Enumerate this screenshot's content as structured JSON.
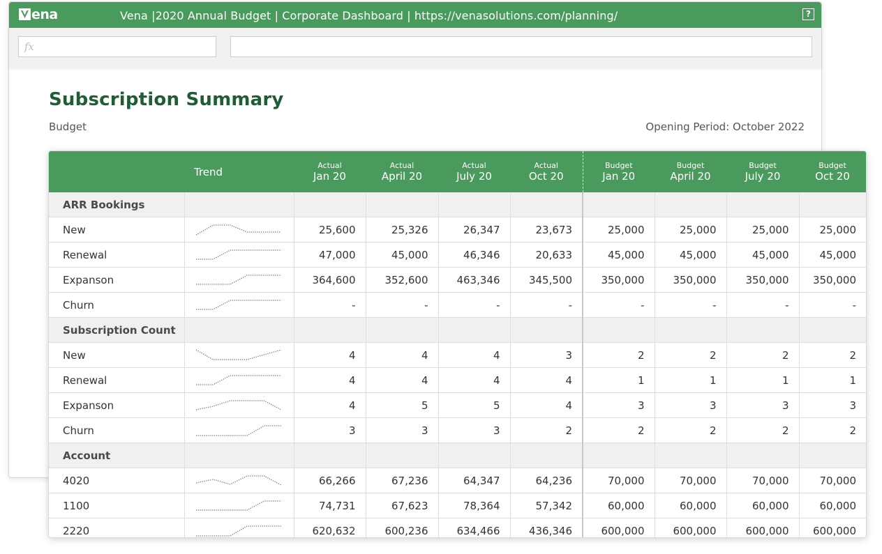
{
  "window": {
    "brand": "ena",
    "title": "Vena |2020 Annual Budget | Corporate Dashboard | https://venasolutions.com/planning/",
    "help_label": "?",
    "brand_color": "#4a9a5e"
  },
  "formula_bar": {
    "fx_placeholder": "fx",
    "formula_value": ""
  },
  "page": {
    "title": "Subscription Summary",
    "subtitle": "Budget",
    "opening_period": "Opening Period: October 2022"
  },
  "table": {
    "trend_header": "Trend",
    "columns": [
      {
        "group": "Actual",
        "period": "Jan 20"
      },
      {
        "group": "Actual",
        "period": "April 20"
      },
      {
        "group": "Actual",
        "period": "July 20"
      },
      {
        "group": "Actual",
        "period": "Oct 20"
      },
      {
        "group": "Budget",
        "period": "Jan 20"
      },
      {
        "group": "Budget",
        "period": "April 20"
      },
      {
        "group": "Budget",
        "period": "July 20"
      },
      {
        "group": "Budget",
        "period": "Oct 20"
      }
    ],
    "rows": [
      {
        "type": "section",
        "label": "ARR Bookings"
      },
      {
        "type": "data",
        "label": "New",
        "trend": [
          0.15,
          0.85,
          0.85,
          0.35,
          0.35,
          0.35
        ],
        "values": [
          "25,600",
          "25,326",
          "26,347",
          "23,673",
          "25,000",
          "25,000",
          "25,000",
          "25,000"
        ]
      },
      {
        "type": "data",
        "label": "Renewal",
        "trend": [
          0.2,
          0.2,
          0.85,
          0.85,
          0.85,
          0.85
        ],
        "values": [
          "47,000",
          "45,000",
          "46,346",
          "20,633",
          "45,000",
          "45,000",
          "45,000",
          "45,000"
        ]
      },
      {
        "type": "data",
        "label": "Expanson",
        "trend": [
          0.2,
          0.2,
          0.2,
          0.85,
          0.85,
          0.85
        ],
        "values": [
          "364,600",
          "352,600",
          "463,346",
          "345,500",
          "350,000",
          "350,000",
          "350,000",
          "350,000"
        ]
      },
      {
        "type": "data",
        "label": "Churn",
        "trend": [
          0.2,
          0.2,
          0.85,
          0.85,
          0.85,
          0.85
        ],
        "values": [
          "-",
          "-",
          "-",
          "-",
          "-",
          "-",
          "-",
          "-"
        ]
      },
      {
        "type": "section",
        "label": "Subscription Count"
      },
      {
        "type": "data",
        "label": "New",
        "trend": [
          0.9,
          0.2,
          0.2,
          0.2,
          0.55,
          0.9
        ],
        "values": [
          "4",
          "4",
          "4",
          "3",
          "2",
          "2",
          "2",
          "2"
        ]
      },
      {
        "type": "data",
        "label": "Renewal",
        "trend": [
          0.2,
          0.2,
          0.85,
          0.85,
          0.85,
          0.85
        ],
        "values": [
          "4",
          "4",
          "4",
          "4",
          "1",
          "1",
          "1",
          "1"
        ]
      },
      {
        "type": "data",
        "label": "Expanson",
        "trend": [
          0.2,
          0.45,
          0.85,
          0.85,
          0.85,
          0.2
        ],
        "values": [
          "4",
          "5",
          "5",
          "4",
          "3",
          "3",
          "3",
          "3"
        ]
      },
      {
        "type": "data",
        "label": "Churn",
        "trend": [
          0.15,
          0.15,
          0.15,
          0.15,
          0.85,
          0.85
        ],
        "values": [
          "3",
          "3",
          "3",
          "2",
          "2",
          "2",
          "2",
          "2"
        ]
      },
      {
        "type": "section",
        "label": "Account"
      },
      {
        "type": "data",
        "label": "4020",
        "trend": [
          0.35,
          0.6,
          0.25,
          0.85,
          0.85,
          0.2
        ],
        "values": [
          "66,266",
          "67,236",
          "64,347",
          "64,236",
          "70,000",
          "70,000",
          "70,000",
          "70,000"
        ]
      },
      {
        "type": "data",
        "label": "1100",
        "trend": [
          0.2,
          0.2,
          0.2,
          0.2,
          0.85,
          0.85
        ],
        "values": [
          "74,731",
          "67,623",
          "78,364",
          "57,342",
          "60,000",
          "60,000",
          "60,000",
          "60,000"
        ]
      },
      {
        "type": "data",
        "label": "2220",
        "trend": [
          0.15,
          0.15,
          0.15,
          0.85,
          0.85,
          0.85
        ],
        "values": [
          "620,632",
          "600,236",
          "634,466",
          "436,346",
          "600,000",
          "600,000",
          "600,000",
          "600,000"
        ]
      }
    ]
  }
}
